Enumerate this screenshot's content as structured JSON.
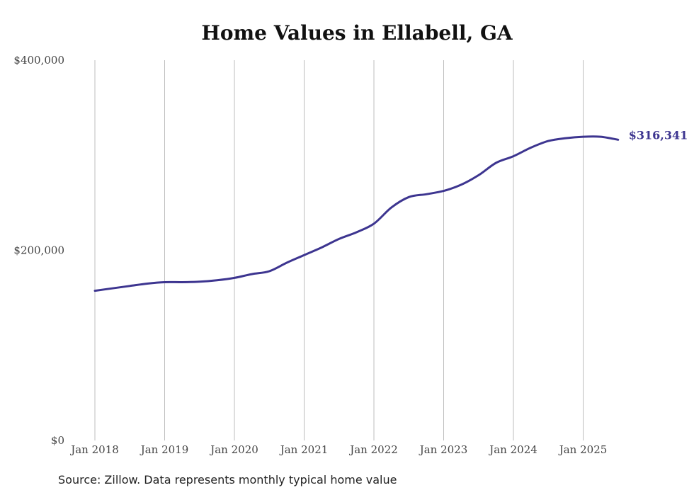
{
  "chart_data": {
    "type": "line",
    "title": "Home Values in Ellabell, GA",
    "xlabel": "",
    "ylabel": "",
    "ylim": [
      0,
      400000
    ],
    "y_ticks": [
      "$0",
      "$200,000",
      "$400,000"
    ],
    "x_ticks": [
      "Jan 2018",
      "Jan 2019",
      "Jan 2020",
      "Jan 2021",
      "Jan 2022",
      "Jan 2023",
      "Jan 2024",
      "Jan 2025"
    ],
    "grid": "vertical",
    "line_color": "#3d3590",
    "series": [
      {
        "values": [
          {
            "date": "2018-01",
            "y": 157500
          },
          {
            "date": "2018-04",
            "y": 160000
          },
          {
            "date": "2018-07",
            "y": 162500
          },
          {
            "date": "2018-10",
            "y": 165000
          },
          {
            "date": "2019-01",
            "y": 166500
          },
          {
            "date": "2019-04",
            "y": 166500
          },
          {
            "date": "2019-07",
            "y": 167000
          },
          {
            "date": "2019-10",
            "y": 168500
          },
          {
            "date": "2020-01",
            "y": 171000
          },
          {
            "date": "2020-04",
            "y": 175000
          },
          {
            "date": "2020-07",
            "y": 178000
          },
          {
            "date": "2020-10",
            "y": 187000
          },
          {
            "date": "2021-01",
            "y": 195000
          },
          {
            "date": "2021-04",
            "y": 203000
          },
          {
            "date": "2021-07",
            "y": 212000
          },
          {
            "date": "2021-10",
            "y": 219000
          },
          {
            "date": "2022-01",
            "y": 228000
          },
          {
            "date": "2022-04",
            "y": 245000
          },
          {
            "date": "2022-07",
            "y": 256000
          },
          {
            "date": "2022-10",
            "y": 259000
          },
          {
            "date": "2023-01",
            "y": 262500
          },
          {
            "date": "2023-04",
            "y": 269000
          },
          {
            "date": "2023-07",
            "y": 279000
          },
          {
            "date": "2023-10",
            "y": 292000
          },
          {
            "date": "2024-01",
            "y": 299000
          },
          {
            "date": "2024-04",
            "y": 308000
          },
          {
            "date": "2024-07",
            "y": 315000
          },
          {
            "date": "2024-10",
            "y": 318000
          },
          {
            "date": "2025-01",
            "y": 319500
          },
          {
            "date": "2025-04",
            "y": 319500
          },
          {
            "date": "2025-07",
            "y": 316341
          }
        ]
      }
    ],
    "end_label": "$316,341"
  },
  "source": "Source: Zillow. Data represents monthly typical home value"
}
